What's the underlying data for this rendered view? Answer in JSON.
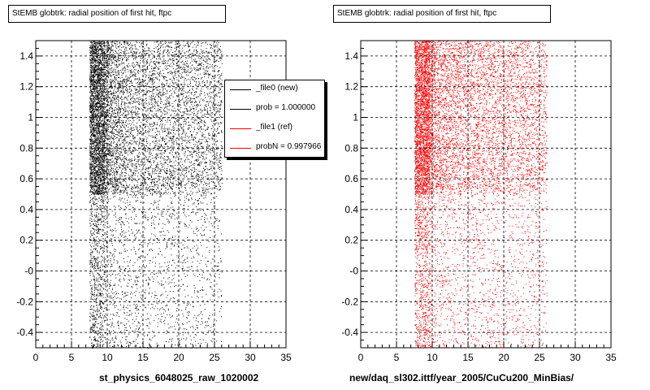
{
  "chart_data": [
    {
      "type": "scatter",
      "title": "StEMB globtrk: radial position of first hit, ftpc",
      "xlabel": "st_physics_6048025_raw_1020002",
      "xlim": [
        0,
        35
      ],
      "ylim": [
        -0.5,
        1.5
      ],
      "x_ticks": [
        "0",
        "5",
        "10",
        "15",
        "20",
        "25",
        "30",
        "35"
      ],
      "y_ticks": [
        "-0.4",
        "-0.2",
        "-0",
        "0.2",
        "0.4",
        "0.6",
        "0.8",
        "1",
        "1.2",
        "1.4"
      ],
      "grid": true,
      "color": "#000000",
      "legend": {
        "placement": "top-right",
        "entries": [
          {
            "label": "_file0 (new)",
            "color": "#000000"
          },
          {
            "label": "prob = 1.000000",
            "color": "#000000"
          },
          {
            "label": "_file1 (ref)",
            "color": "#ff0000"
          },
          {
            "label": "probN = 0.997966",
            "color": "#ff0000"
          }
        ]
      },
      "distribution": {
        "x_band": [
          7.5,
          9.5
        ],
        "x_extent": [
          7.5,
          26
        ],
        "dense_y_range": [
          0.5,
          1.5
        ],
        "sparse_y_range": [
          -0.5,
          0.5
        ]
      }
    },
    {
      "type": "scatter",
      "title": "StEMB globtrk: radial position of first hit, ftpc",
      "xlabel": "new/daq_sl302.ittf/year_2005/CuCu200_MinBias/",
      "xlim": [
        0,
        35
      ],
      "ylim": [
        -0.5,
        1.5
      ],
      "x_ticks": [
        "0",
        "5",
        "10",
        "15",
        "20",
        "25",
        "30",
        "35"
      ],
      "y_ticks": [
        "-0.4",
        "-0.2",
        "-0",
        "0.2",
        "0.4",
        "0.6",
        "0.8",
        "1",
        "1.2",
        "1.4"
      ],
      "grid": true,
      "color": "#ff0000",
      "distribution": {
        "x_band": [
          7.5,
          9.5
        ],
        "x_extent": [
          7.5,
          26
        ],
        "dense_y_range": [
          0.5,
          1.5
        ],
        "sparse_y_range": [
          -0.5,
          0.5
        ]
      }
    }
  ]
}
